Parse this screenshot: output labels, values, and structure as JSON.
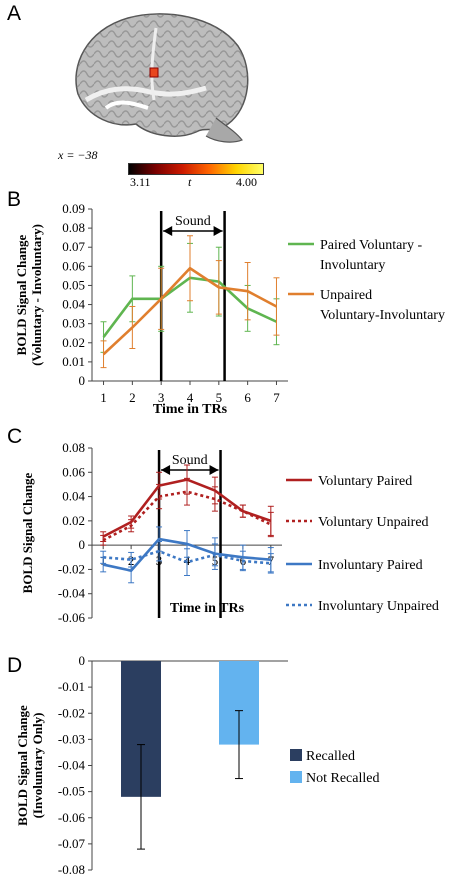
{
  "panels": {
    "a": {
      "letter": "A",
      "coord_label": "x = −38",
      "colorbar": {
        "min_label": "3.11",
        "var_label": "t",
        "max_label": "4.00",
        "colors": [
          "#000000",
          "#7a0000",
          "#cc1a00",
          "#ff6600",
          "#ffd400",
          "#ffff66"
        ]
      }
    },
    "b": {
      "letter": "B"
    },
    "c": {
      "letter": "C"
    },
    "d": {
      "letter": "D"
    }
  },
  "chart_data": [
    {
      "id": "b",
      "type": "line",
      "ylabel": "BOLD Signal Change (Voluntary - Involuntary)",
      "xlabel": "Time in TRs",
      "x": [
        1,
        2,
        3,
        4,
        5,
        6,
        7
      ],
      "xlim": [
        0.6,
        7.4
      ],
      "ylim": [
        0,
        0.09
      ],
      "yticks": [
        "0",
        "0.01",
        "0.02",
        "0.03",
        "0.04",
        "0.05",
        "0.06",
        "0.07",
        "0.08",
        "0.09"
      ],
      "event": {
        "label": "Sound",
        "start": 3,
        "end": 5.2
      },
      "series": [
        {
          "name": "Paired Voluntary - Involuntary",
          "color": "#5fb550",
          "dashed": false,
          "values": [
            0.023,
            0.043,
            0.043,
            0.054,
            0.052,
            0.038,
            0.031
          ],
          "errors": [
            0.008,
            0.012,
            0.017,
            0.018,
            0.018,
            0.012,
            0.012
          ]
        },
        {
          "name": "Unpaired Voluntary-Involuntary",
          "color": "#e07f2e",
          "dashed": false,
          "values": [
            0.014,
            0.028,
            0.043,
            0.059,
            0.049,
            0.047,
            0.039
          ],
          "errors": [
            0.007,
            0.011,
            0.016,
            0.017,
            0.014,
            0.015,
            0.015
          ]
        }
      ]
    },
    {
      "id": "c",
      "type": "line",
      "ylabel": "BOLD Signal Change",
      "xlabel": "Time in TRs",
      "x": [
        1,
        2,
        3,
        4,
        5,
        6,
        7
      ],
      "xlim": [
        0.6,
        7.4
      ],
      "ylim": [
        -0.06,
        0.08
      ],
      "yticks": [
        "-0.06",
        "-0.04",
        "-0.02",
        "0",
        "0.02",
        "0.04",
        "0.06",
        "0.08"
      ],
      "event": {
        "label": "Sound",
        "start": 3,
        "end": 5.2
      },
      "series": [
        {
          "name": "Voluntary Paired",
          "color": "#b02020",
          "dashed": false,
          "values": [
            0.007,
            0.019,
            0.049,
            0.054,
            0.045,
            0.028,
            0.02
          ],
          "errors": [
            0.004,
            0.005,
            0.011,
            0.012,
            0.011,
            0.005,
            0.012
          ]
        },
        {
          "name": "Voluntary Unpaired",
          "color": "#b02020",
          "dashed": true,
          "values": [
            0.004,
            0.016,
            0.04,
            0.044,
            0.038,
            0.028,
            0.017
          ],
          "errors": [
            0.004,
            0.005,
            0.01,
            0.011,
            0.01,
            0.005,
            0.01
          ]
        },
        {
          "name": "Involuntary Paired",
          "color": "#3d78c4",
          "dashed": false,
          "values": [
            -0.016,
            -0.021,
            0.005,
            0.001,
            -0.007,
            -0.01,
            -0.012
          ],
          "errors": [
            0.006,
            0.01,
            0.01,
            0.011,
            0.013,
            0.01,
            0.01
          ]
        },
        {
          "name": "Involuntary Unpaired",
          "color": "#3d78c4",
          "dashed": true,
          "values": [
            -0.01,
            -0.012,
            -0.005,
            -0.014,
            -0.008,
            -0.013,
            -0.015
          ],
          "errors": [
            0.005,
            0.006,
            0.008,
            0.011,
            0.009,
            0.008,
            0.008
          ]
        }
      ]
    },
    {
      "id": "d",
      "type": "bar",
      "ylabel": "BOLD Signal Change (Involuntary Only)",
      "ylim": [
        -0.08,
        0
      ],
      "yticks": [
        "-0.08",
        "-0.07",
        "-0.06",
        "-0.05",
        "-0.04",
        "-0.03",
        "-0.02",
        "-0.01",
        "0"
      ],
      "series": [
        {
          "name": "Recalled",
          "color": "#2b3e60",
          "value": -0.052,
          "error": 0.02
        },
        {
          "name": "Not Recalled",
          "color": "#63b3ef",
          "value": -0.032,
          "error": 0.013
        }
      ]
    }
  ]
}
